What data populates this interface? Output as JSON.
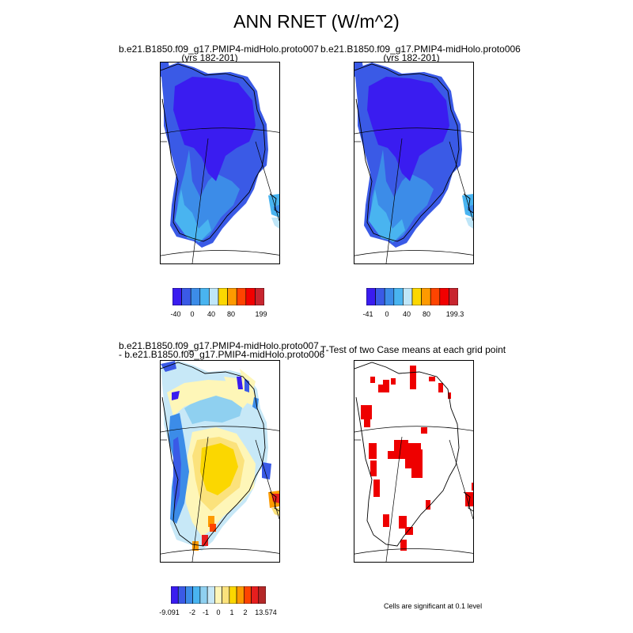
{
  "page": {
    "title": "ANN RNET (W/m^2)"
  },
  "panels": [
    {
      "title_line1": "b.e21.B1850.f09_g17.PMIP4-midHolo.proto007",
      "title_line2": "(yrs 182-201)",
      "colorbar": {
        "colors": [
          "#3a1cf0",
          "#3a5ae6",
          "#3c8ce8",
          "#49b4f0",
          "#bfe6f8",
          "#fbd700",
          "#fd9a00",
          "#fe4400",
          "#f20000",
          "#c8252f"
        ],
        "labels": [
          "-40",
          "0",
          "40",
          "80",
          "199"
        ]
      }
    },
    {
      "title_line1": "b.e21.B1850.f09_g17.PMIP4-midHolo.proto006",
      "title_line2": "(yrs 182-201)",
      "colorbar": {
        "colors": [
          "#3a1cf0",
          "#3a5ae6",
          "#3c8ce8",
          "#49b4f0",
          "#bfe6f8",
          "#fbd700",
          "#fd9a00",
          "#fe4400",
          "#f20000",
          "#c8252f"
        ],
        "labels": [
          "-41",
          "0",
          "40",
          "80",
          "199.3"
        ]
      }
    },
    {
      "title_line1": "b.e21.B1850.f09_g17.PMIP4-midHolo.proto007",
      "title_line2": "- b.e21.B1850.f09_g17.PMIP4-midHolo.proto006",
      "colorbar": {
        "colors": [
          "#3a1cf0",
          "#3a5ae6",
          "#3c8ce8",
          "#49b4f0",
          "#8fd0f0",
          "#c7e8f7",
          "#fef6b8",
          "#fbe27c",
          "#fbd700",
          "#fd9a00",
          "#fe4400",
          "#e61e1e",
          "#b42828"
        ],
        "labels": [
          "-9.091",
          "-2",
          "-1",
          "0",
          "1",
          "2",
          "13.574"
        ]
      }
    },
    {
      "title_line1": "T-Test of two Case means at each grid point",
      "title_line2": "",
      "note": "Cells are significant at 0.1 level"
    }
  ]
}
